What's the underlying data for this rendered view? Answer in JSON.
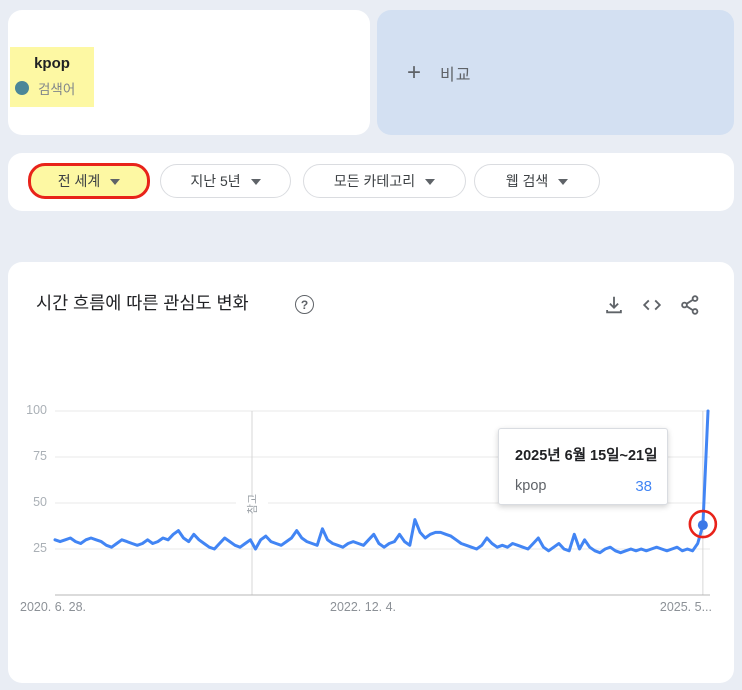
{
  "page": {
    "background": "#e9edf4"
  },
  "term_card": {
    "term": "kpop",
    "type_label": "검색어",
    "dot_color": "#4c8798",
    "highlight_color": "#fdf8a3"
  },
  "compare_card": {
    "plus": "+",
    "label": "비교"
  },
  "filters": [
    {
      "label": "전 세계",
      "highlighted": true
    },
    {
      "label": "지난 5년",
      "highlighted": false
    },
    {
      "label": "모든 카테고리",
      "highlighted": false
    },
    {
      "label": "웹 검색",
      "highlighted": false
    }
  ],
  "chart_section": {
    "title": "시간 흐름에 따른 관심도 변화",
    "help_glyph": "?",
    "icons": [
      "download-icon",
      "embed-code-icon",
      "share-icon"
    ]
  },
  "tooltip": {
    "title": "2025년 6월 15일~21일",
    "term": "kpop",
    "value": 38,
    "value_color": "#4285f4"
  },
  "annotations": {
    "highlight_color": "#fdf8a3",
    "red_outline_color": "#e8231a",
    "red_circle_on": "hovered-data-point"
  },
  "chart_data": {
    "type": "line",
    "title": "시간 흐름에 따른 관심도 변화",
    "series": [
      {
        "name": "kpop",
        "values": [
          30,
          29,
          30,
          31,
          29,
          28,
          30,
          31,
          30,
          29,
          27,
          26,
          28,
          30,
          29,
          28,
          27,
          28,
          30,
          28,
          29,
          31,
          30,
          33,
          35,
          31,
          29,
          33,
          30,
          28,
          26,
          25,
          28,
          31,
          29,
          27,
          26,
          28,
          30,
          25,
          30,
          32,
          29,
          28,
          27,
          29,
          31,
          35,
          31,
          29,
          28,
          27,
          36,
          30,
          28,
          27,
          26,
          28,
          29,
          28,
          27,
          30,
          33,
          28,
          26,
          28,
          29,
          33,
          29,
          27,
          41,
          34,
          31,
          33,
          34,
          34,
          33,
          32,
          30,
          28,
          27,
          26,
          25,
          27,
          31,
          28,
          26,
          27,
          26,
          28,
          27,
          26,
          25,
          28,
          31,
          26,
          24,
          26,
          28,
          25,
          24,
          33,
          25,
          30,
          26,
          24,
          23,
          25,
          26,
          24,
          23,
          24,
          25,
          24,
          25,
          24,
          25,
          26,
          25,
          24,
          25,
          26,
          24,
          25,
          24,
          28,
          38,
          100
        ]
      }
    ],
    "x_ticks": [
      "2020. 6. 28.",
      "2022. 12. 4.",
      "2025. 5..."
    ],
    "y_ticks": [
      100,
      75,
      50,
      25
    ],
    "ylim": [
      0,
      100
    ],
    "grid": true,
    "line_color": "#4285f4",
    "note_label": "참고",
    "highlight_point": {
      "index": 126,
      "value": 38
    }
  }
}
